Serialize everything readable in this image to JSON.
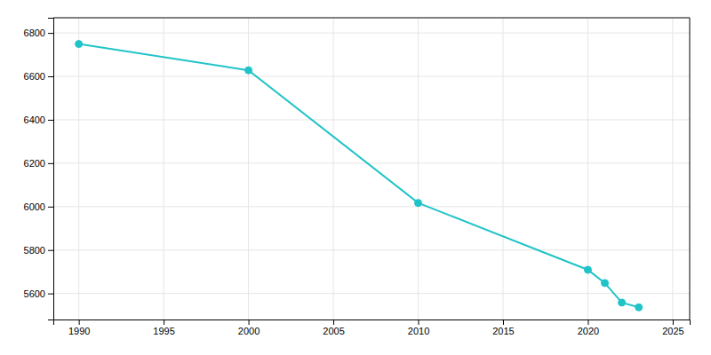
{
  "chart_data": {
    "type": "line",
    "x": [
      1990,
      2000,
      2010,
      2020,
      2021,
      2022,
      2023
    ],
    "values": [
      6749,
      6628,
      6017,
      5709,
      5648,
      5558,
      5536
    ],
    "color": "#20C4C8",
    "marker": "circle",
    "xlim": [
      1988.5,
      2026
    ],
    "ylim": [
      5480,
      6870
    ],
    "xticks": [
      1990,
      1995,
      2000,
      2005,
      2010,
      2015,
      2020,
      2025
    ],
    "yticks": [
      5600,
      5800,
      6000,
      6200,
      6400,
      6600,
      6800
    ],
    "grid": true
  }
}
